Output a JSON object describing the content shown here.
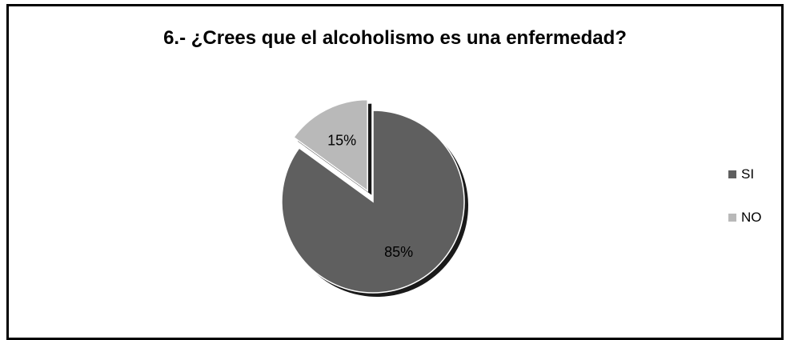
{
  "chart_data": {
    "type": "pie",
    "title": "6.- ¿Crees que el alcoholismo es una enfermedad?",
    "categories": [
      "SI",
      "NO"
    ],
    "values": [
      85,
      15
    ],
    "data_labels": [
      "85%",
      "15%"
    ],
    "colors": [
      "#5f5f5f",
      "#b9b9b9"
    ],
    "exploded": [
      false,
      true
    ],
    "legend_position": "right"
  }
}
